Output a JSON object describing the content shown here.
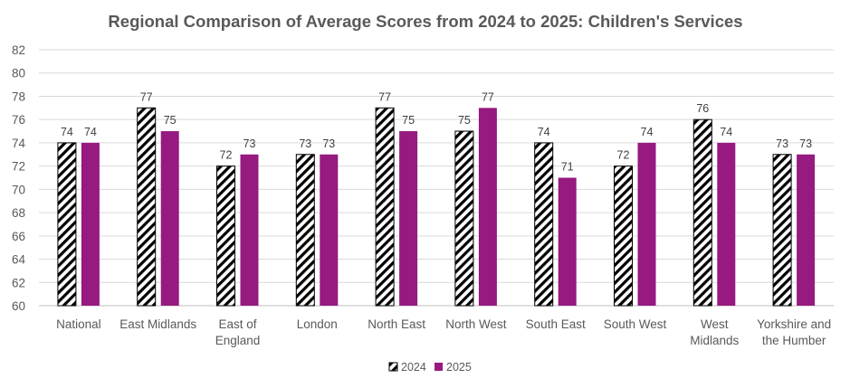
{
  "chart_data": {
    "type": "bar",
    "title": "Regional Comparison  of Average Scores from 2024 to 2025: Children's Services",
    "xlabel": "",
    "ylabel": "",
    "ylim": [
      60,
      82
    ],
    "ytick_step": 2,
    "yticks": [
      "60",
      "62",
      "64",
      "66",
      "68",
      "70",
      "72",
      "74",
      "76",
      "78",
      "80",
      "82"
    ],
    "grid": true,
    "legend_position": "bottom",
    "categories": [
      [
        "National"
      ],
      [
        "East Midlands"
      ],
      [
        "East of",
        "England"
      ],
      [
        "London"
      ],
      [
        "North East"
      ],
      [
        "North West"
      ],
      [
        "South East"
      ],
      [
        "South West"
      ],
      [
        "West",
        "Midlands"
      ],
      [
        "Yorkshire and",
        "the Humber"
      ]
    ],
    "series": [
      {
        "name": "2024",
        "pattern": "diagonal-hatch",
        "color": "#000000",
        "values": [
          74,
          77,
          72,
          73,
          77,
          75,
          74,
          72,
          76,
          73
        ]
      },
      {
        "name": "2025",
        "pattern": "solid",
        "color": "#961a80",
        "values": [
          74,
          75,
          73,
          73,
          75,
          77,
          71,
          74,
          74,
          73
        ]
      }
    ]
  }
}
